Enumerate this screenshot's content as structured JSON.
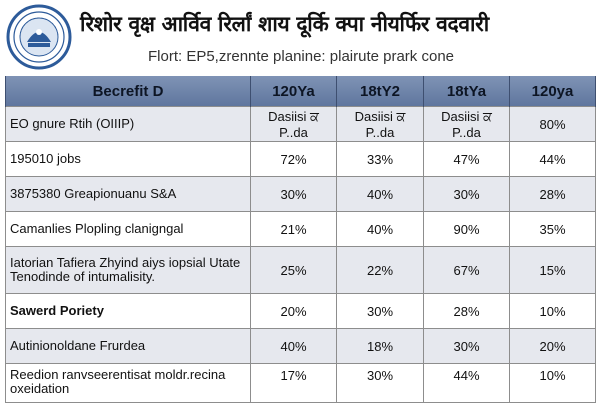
{
  "document": {
    "title": "रिशोर वृक्ष आर्विव रिर्लां शाय दूर्कि क्पा नीयर्फिर वदवारी",
    "subtitle": "Flort: EP5,zrennte planine: plairute prark cone"
  },
  "table": {
    "headers": [
      "Becrefit D",
      "120Ya",
      "18tY2",
      "18tYa",
      "120ya"
    ],
    "rows": [
      {
        "label": "EO gnure Rtih (OIIIP)",
        "cells": [
          "Dasiisi ਕ P..da",
          "Dasiisi ਕ P..da",
          "Dasiisi ਕ P..da",
          "80%"
        ]
      },
      {
        "label": "195010 jobs",
        "cells": [
          "72%",
          "33%",
          "47%",
          "44%"
        ]
      },
      {
        "label": "3875380 Greapionuanu S&A",
        "cells": [
          "30%",
          "40%",
          "30%",
          "28%"
        ]
      },
      {
        "label": "Camanlies Plopling clanigngal",
        "cells": [
          "21%",
          "40%",
          "90%",
          "35%"
        ]
      },
      {
        "label": "Iatorian Tafiera Zhyind aiys iopsial Utate Tenodinde of intumalisity.",
        "cells": [
          "25%",
          "22%",
          "67%",
          "15%"
        ]
      },
      {
        "label": "Sawerd Poriety",
        "cells": [
          "20%",
          "30%",
          "28%",
          "10%"
        ]
      },
      {
        "label": "Autinionoldane Frurdea",
        "cells": [
          "40%",
          "18%",
          "30%",
          "20%"
        ]
      },
      {
        "label": "Reedion ranvseerentisat moldr.recina oxeidation",
        "cells": [
          "17%",
          "30%",
          "44%",
          "10%"
        ]
      }
    ]
  },
  "colors": {
    "header_bg": "#6f84aa",
    "row_shade": "#e6e8ee",
    "seal_blue": "#2d5b9a"
  },
  "icons": {
    "seal": "government-seal-icon"
  }
}
